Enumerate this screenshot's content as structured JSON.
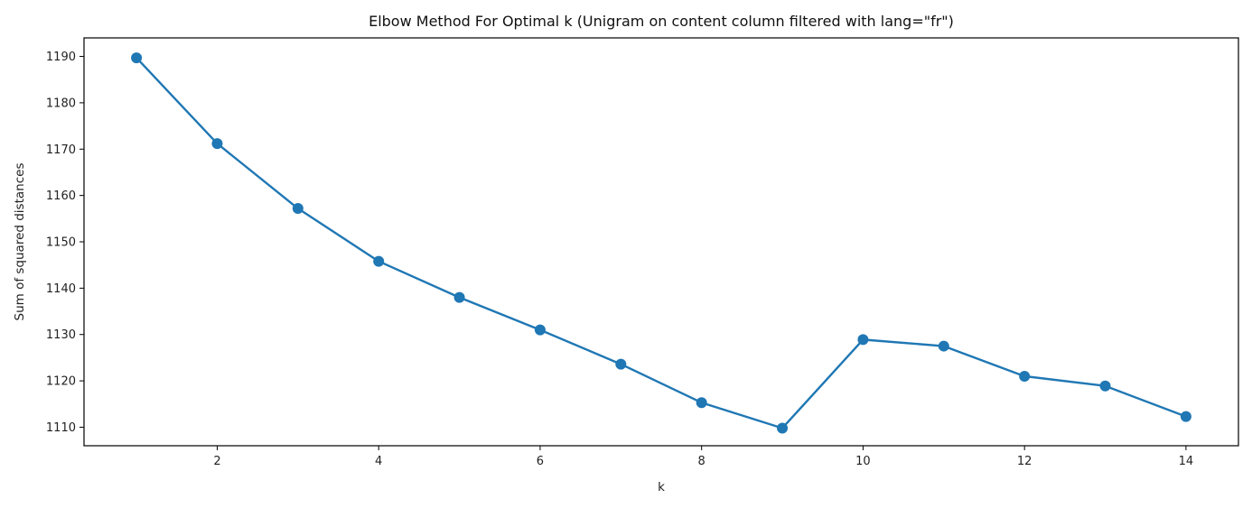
{
  "chart_data": {
    "type": "line",
    "title": "Elbow Method For Optimal k (Unigram on content column filtered with lang=\"fr\")",
    "xlabel": "k",
    "ylabel": "Sum of squared distances",
    "x": [
      1,
      2,
      3,
      4,
      5,
      6,
      7,
      8,
      9,
      10,
      11,
      12,
      13,
      14
    ],
    "series": [
      {
        "values": [
          1189.7,
          1171.2,
          1157.2,
          1145.8,
          1138.0,
          1131.0,
          1123.6,
          1115.3,
          1109.8,
          1128.9,
          1127.5,
          1121.0,
          1118.9,
          1112.3
        ]
      }
    ],
    "xlim": [
      0.35,
      14.65
    ],
    "ylim": [
      1106,
      1194
    ],
    "xticks": [
      "2",
      "4",
      "6",
      "8",
      "10",
      "12",
      "14"
    ],
    "yticks": [
      "1110",
      "1120",
      "1130",
      "1140",
      "1150",
      "1160",
      "1170",
      "1180",
      "1190"
    ],
    "line_color": "#1f77b4",
    "marker": "circle",
    "grid": false
  }
}
